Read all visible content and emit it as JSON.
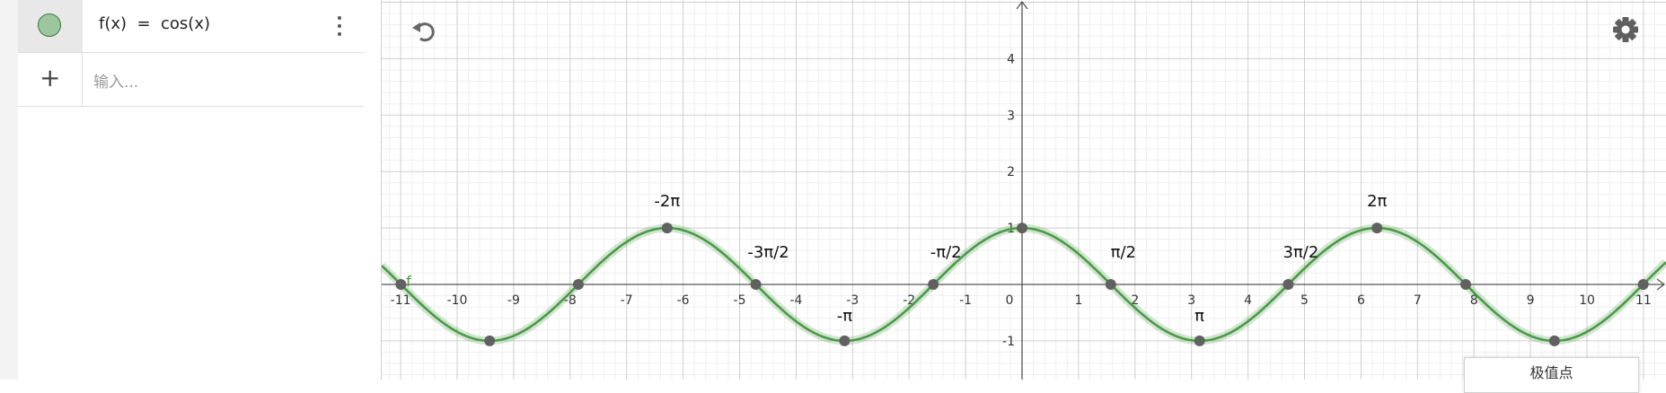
{
  "algebra": {
    "rows": [
      {
        "expression": "f(x)  =  cos(x)"
      }
    ],
    "input_placeholder": "输入...",
    "add_symbol": "+"
  },
  "graph": {
    "function_label": "f",
    "x_ticks": [
      "-11",
      "-10",
      "-9",
      "-8",
      "-7",
      "-6",
      "-5",
      "-4",
      "-3",
      "-2",
      "-1",
      "0",
      "1",
      "2",
      "3",
      "4",
      "5",
      "6",
      "7",
      "8",
      "9",
      "10",
      "11"
    ],
    "y_ticks": [
      "-1",
      "1",
      "2",
      "3",
      "4"
    ],
    "colors": {
      "curve": "#4a9a47",
      "point": "#616161",
      "major_grid": "#cfcfcf",
      "minor_grid": "#efefef"
    },
    "special_points": [
      {
        "x": -10.9956,
        "y": 0,
        "label": ""
      },
      {
        "x": -9.4248,
        "y": -1,
        "label": ""
      },
      {
        "x": -7.854,
        "y": 0,
        "label": ""
      },
      {
        "x": -6.2832,
        "y": 1,
        "label": "-2π"
      },
      {
        "x": -4.7124,
        "y": 0,
        "label": "-3π/2"
      },
      {
        "x": -3.1416,
        "y": -1,
        "label": "-π"
      },
      {
        "x": -1.5708,
        "y": 0,
        "label": "-π/2"
      },
      {
        "x": 0,
        "y": 1,
        "label": ""
      },
      {
        "x": 1.5708,
        "y": 0,
        "label": "π/2"
      },
      {
        "x": 3.1416,
        "y": -1,
        "label": "π"
      },
      {
        "x": 4.7124,
        "y": 0,
        "label": "3π/2"
      },
      {
        "x": 6.2832,
        "y": 1,
        "label": "2π"
      },
      {
        "x": 7.854,
        "y": 0,
        "label": ""
      },
      {
        "x": 9.4248,
        "y": -1,
        "label": ""
      },
      {
        "x": 10.9956,
        "y": 0,
        "label": ""
      }
    ]
  },
  "extremum_button": {
    "label": "极值点"
  }
}
